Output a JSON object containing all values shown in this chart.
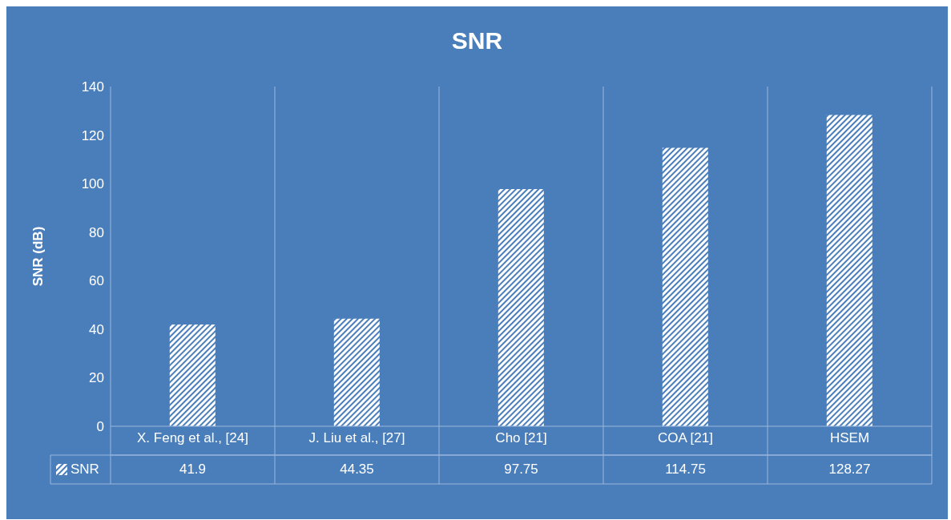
{
  "chart_data": {
    "type": "bar",
    "title": "SNR",
    "ylabel": "SNR (dB)",
    "categories": [
      "X. Feng et al., [24]",
      "J. Liu et al., [27]",
      "Cho [21]",
      "COA [21]",
      "HSEM"
    ],
    "series": [
      {
        "name": "SNR",
        "color": "#ffffff",
        "values": [
          41.9,
          44.35,
          97.75,
          114.75,
          128.27
        ]
      }
    ],
    "ylim": [
      0,
      140
    ],
    "yticks": [
      0,
      20,
      40,
      60,
      80,
      100,
      120,
      140
    ],
    "grid": false,
    "legend": "bottom",
    "data_labels": true
  }
}
